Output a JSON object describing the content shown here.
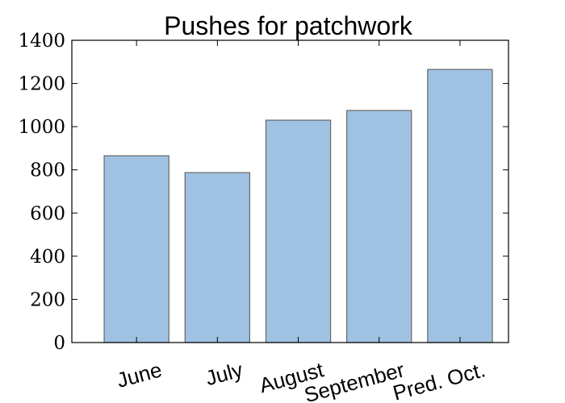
{
  "chart_data": {
    "type": "bar",
    "title": "Pushes for patchwork",
    "xlabel": "",
    "ylabel": "",
    "categories": [
      "June",
      "July",
      "August",
      "September",
      "Pred. Oct."
    ],
    "values": [
      865,
      787,
      1030,
      1075,
      1265
    ],
    "ylim": [
      0,
      1400
    ],
    "yticks": [
      0,
      200,
      400,
      600,
      800,
      1000,
      1200,
      1400
    ],
    "grid": false,
    "legend": "none",
    "bar_color": "#a0c2e2",
    "bar_edge_color": "#666666"
  }
}
